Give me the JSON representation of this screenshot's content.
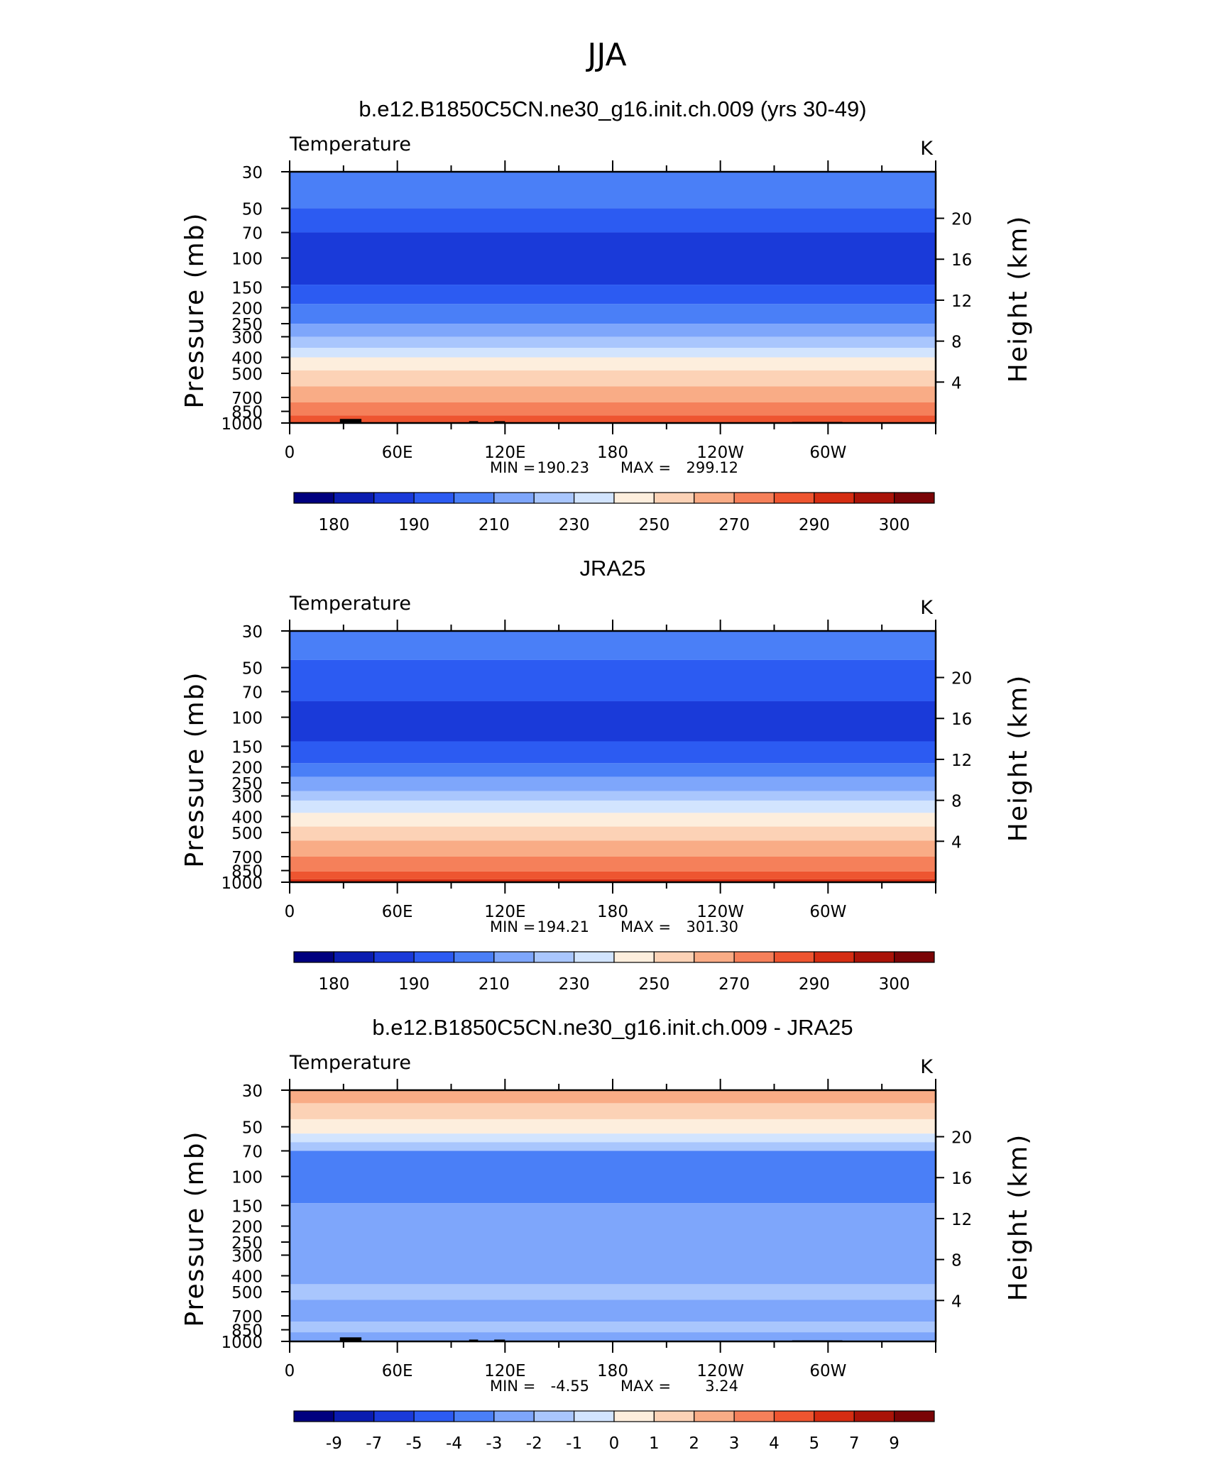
{
  "figure": {
    "title": "JJA"
  },
  "scale": {
    "pressure_ticks": [
      "30",
      "50",
      "70",
      "100",
      "150",
      "200",
      "250",
      "300",
      "400",
      "500",
      "700",
      "850",
      "1000"
    ],
    "height_ticks": [
      "20",
      "16",
      "12",
      "8",
      "4"
    ],
    "lon_ticks": [
      "0",
      "60E",
      "120E",
      "180",
      "120W",
      "60W"
    ]
  },
  "chart_data": [
    {
      "type": "heatmap",
      "title": "b.e12.B1850C5CN.ne30_g16.init.ch.009 (yrs 30-49)",
      "variable": "Temperature",
      "units": "K",
      "ylabel": "Pressure (mb)",
      "ylabel_right": "Height (km)",
      "stats": {
        "min_label": "MIN =",
        "min": "190.23",
        "max_label": "MAX =",
        "max": "299.12"
      },
      "colorbar_labels": [
        "180",
        "190",
        "210",
        "230",
        "250",
        "270",
        "290",
        "300"
      ],
      "colors": [
        "#00007f",
        "#0a1cb0",
        "#1a3ad9",
        "#2c5bf2",
        "#4a7ff7",
        "#7ea6fb",
        "#a9c6fd",
        "#d2e4fe",
        "#fdeedd",
        "#fcd2b6",
        "#f9ac86",
        "#f5805a",
        "#ee5530",
        "#d52d12",
        "#a91308",
        "#7a0406"
      ],
      "levels": [
        {
          "p": 30,
          "c": 4
        },
        {
          "p": 50,
          "c": 3
        },
        {
          "p": 70,
          "c": 2
        },
        {
          "p": 145,
          "c": 3
        },
        {
          "p": 190,
          "c": 4
        },
        {
          "p": 250,
          "c": 5
        },
        {
          "p": 300,
          "c": 6
        },
        {
          "p": 350,
          "c": 7
        },
        {
          "p": 400,
          "c": 8
        },
        {
          "p": 480,
          "c": 9
        },
        {
          "p": 600,
          "c": 10
        },
        {
          "p": 750,
          "c": 11
        },
        {
          "p": 900,
          "c": 12
        },
        {
          "p": 1000,
          "c": 13
        }
      ],
      "topography": true
    },
    {
      "type": "heatmap",
      "title": "JRA25",
      "variable": "Temperature",
      "units": "K",
      "ylabel": "Pressure (mb)",
      "ylabel_right": "Height (km)",
      "stats": {
        "min_label": "MIN =",
        "min": "194.21",
        "max_label": "MAX =",
        "max": "301.30"
      },
      "colorbar_labels": [
        "180",
        "190",
        "210",
        "230",
        "250",
        "270",
        "290",
        "300"
      ],
      "colors": [
        "#00007f",
        "#0a1cb0",
        "#1a3ad9",
        "#2c5bf2",
        "#4a7ff7",
        "#7ea6fb",
        "#a9c6fd",
        "#d2e4fe",
        "#fdeedd",
        "#fcd2b6",
        "#f9ac86",
        "#f5805a",
        "#ee5530",
        "#d52d12",
        "#a91308",
        "#7a0406"
      ],
      "levels": [
        {
          "p": 30,
          "c": 4
        },
        {
          "p": 45,
          "c": 3
        },
        {
          "p": 80,
          "c": 2
        },
        {
          "p": 140,
          "c": 3
        },
        {
          "p": 190,
          "c": 4
        },
        {
          "p": 230,
          "c": 5
        },
        {
          "p": 280,
          "c": 6
        },
        {
          "p": 320,
          "c": 7
        },
        {
          "p": 380,
          "c": 8
        },
        {
          "p": 460,
          "c": 9
        },
        {
          "p": 560,
          "c": 10
        },
        {
          "p": 700,
          "c": 11
        },
        {
          "p": 860,
          "c": 12
        },
        {
          "p": 960,
          "c": 13
        }
      ],
      "topography": false
    },
    {
      "type": "heatmap",
      "title": "b.e12.B1850C5CN.ne30_g16.init.ch.009 - JRA25",
      "variable": "Temperature",
      "units": "K",
      "ylabel": "Pressure (mb)",
      "ylabel_right": "Height (km)",
      "stats": {
        "min_label": "MIN =",
        "min": "-4.55",
        "max_label": "MAX =",
        "max": "3.24"
      },
      "colorbar_labels": [
        "-9",
        "-7",
        "-5",
        "-4",
        "-3",
        "-2",
        "-1",
        "0",
        "1",
        "2",
        "3",
        "4",
        "5",
        "7",
        "9"
      ],
      "colors": [
        "#00007f",
        "#0a1cb0",
        "#1a3ad9",
        "#2c5bf2",
        "#4a7ff7",
        "#7ea6fb",
        "#a9c6fd",
        "#d2e4fe",
        "#fdeedd",
        "#fcd2b6",
        "#f9ac86",
        "#f5805a",
        "#ee5530",
        "#d52d12",
        "#a91308",
        "#7a0406"
      ],
      "levels": [
        {
          "p": 30,
          "c": 10
        },
        {
          "p": 36,
          "c": 9
        },
        {
          "p": 45,
          "c": 8
        },
        {
          "p": 55,
          "c": 7
        },
        {
          "p": 62,
          "c": 6
        },
        {
          "p": 70,
          "c": 4
        },
        {
          "p": 145,
          "c": 5
        },
        {
          "p": 450,
          "c": 6
        },
        {
          "p": 560,
          "c": 5
        },
        {
          "p": 760,
          "c": 6
        },
        {
          "p": 880,
          "c": 5
        }
      ],
      "topography": true
    }
  ]
}
